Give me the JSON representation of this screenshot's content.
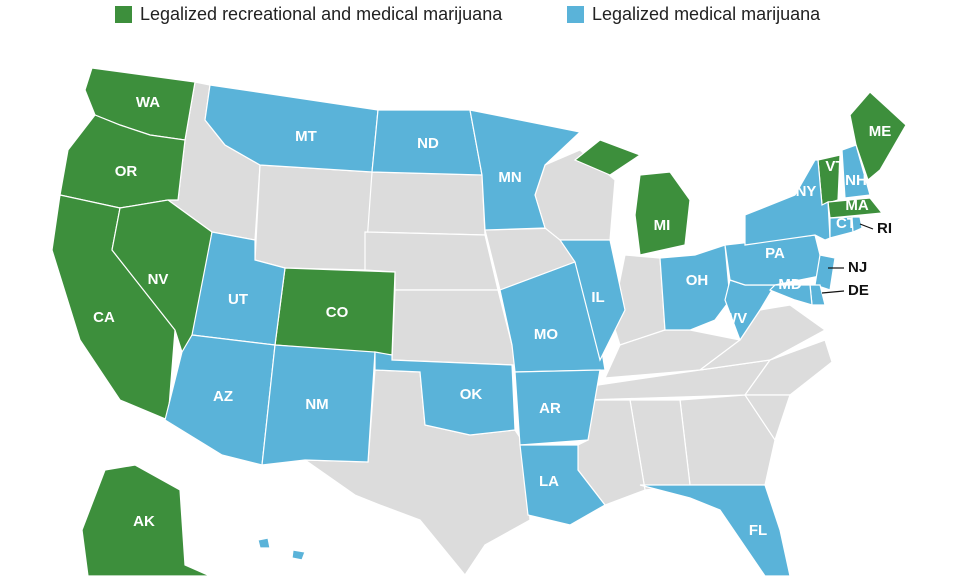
{
  "legend": [
    {
      "label": "Legalized recreational and medical marijuana",
      "color": "#3d8f3c",
      "states": [
        "WA",
        "OR",
        "CA",
        "NV",
        "CO",
        "MI",
        "VT",
        "MA",
        "ME",
        "AK"
      ]
    },
    {
      "label": "Legalized medical marijuana",
      "color": "#5ab3d9",
      "states": [
        "MT",
        "ND",
        "MN",
        "UT",
        "AZ",
        "NM",
        "OK",
        "MO",
        "AR",
        "LA",
        "IL",
        "OH",
        "WV",
        "PA",
        "NY",
        "NH",
        "CT",
        "RI",
        "NJ",
        "DE",
        "MD",
        "FL"
      ]
    }
  ]
}
